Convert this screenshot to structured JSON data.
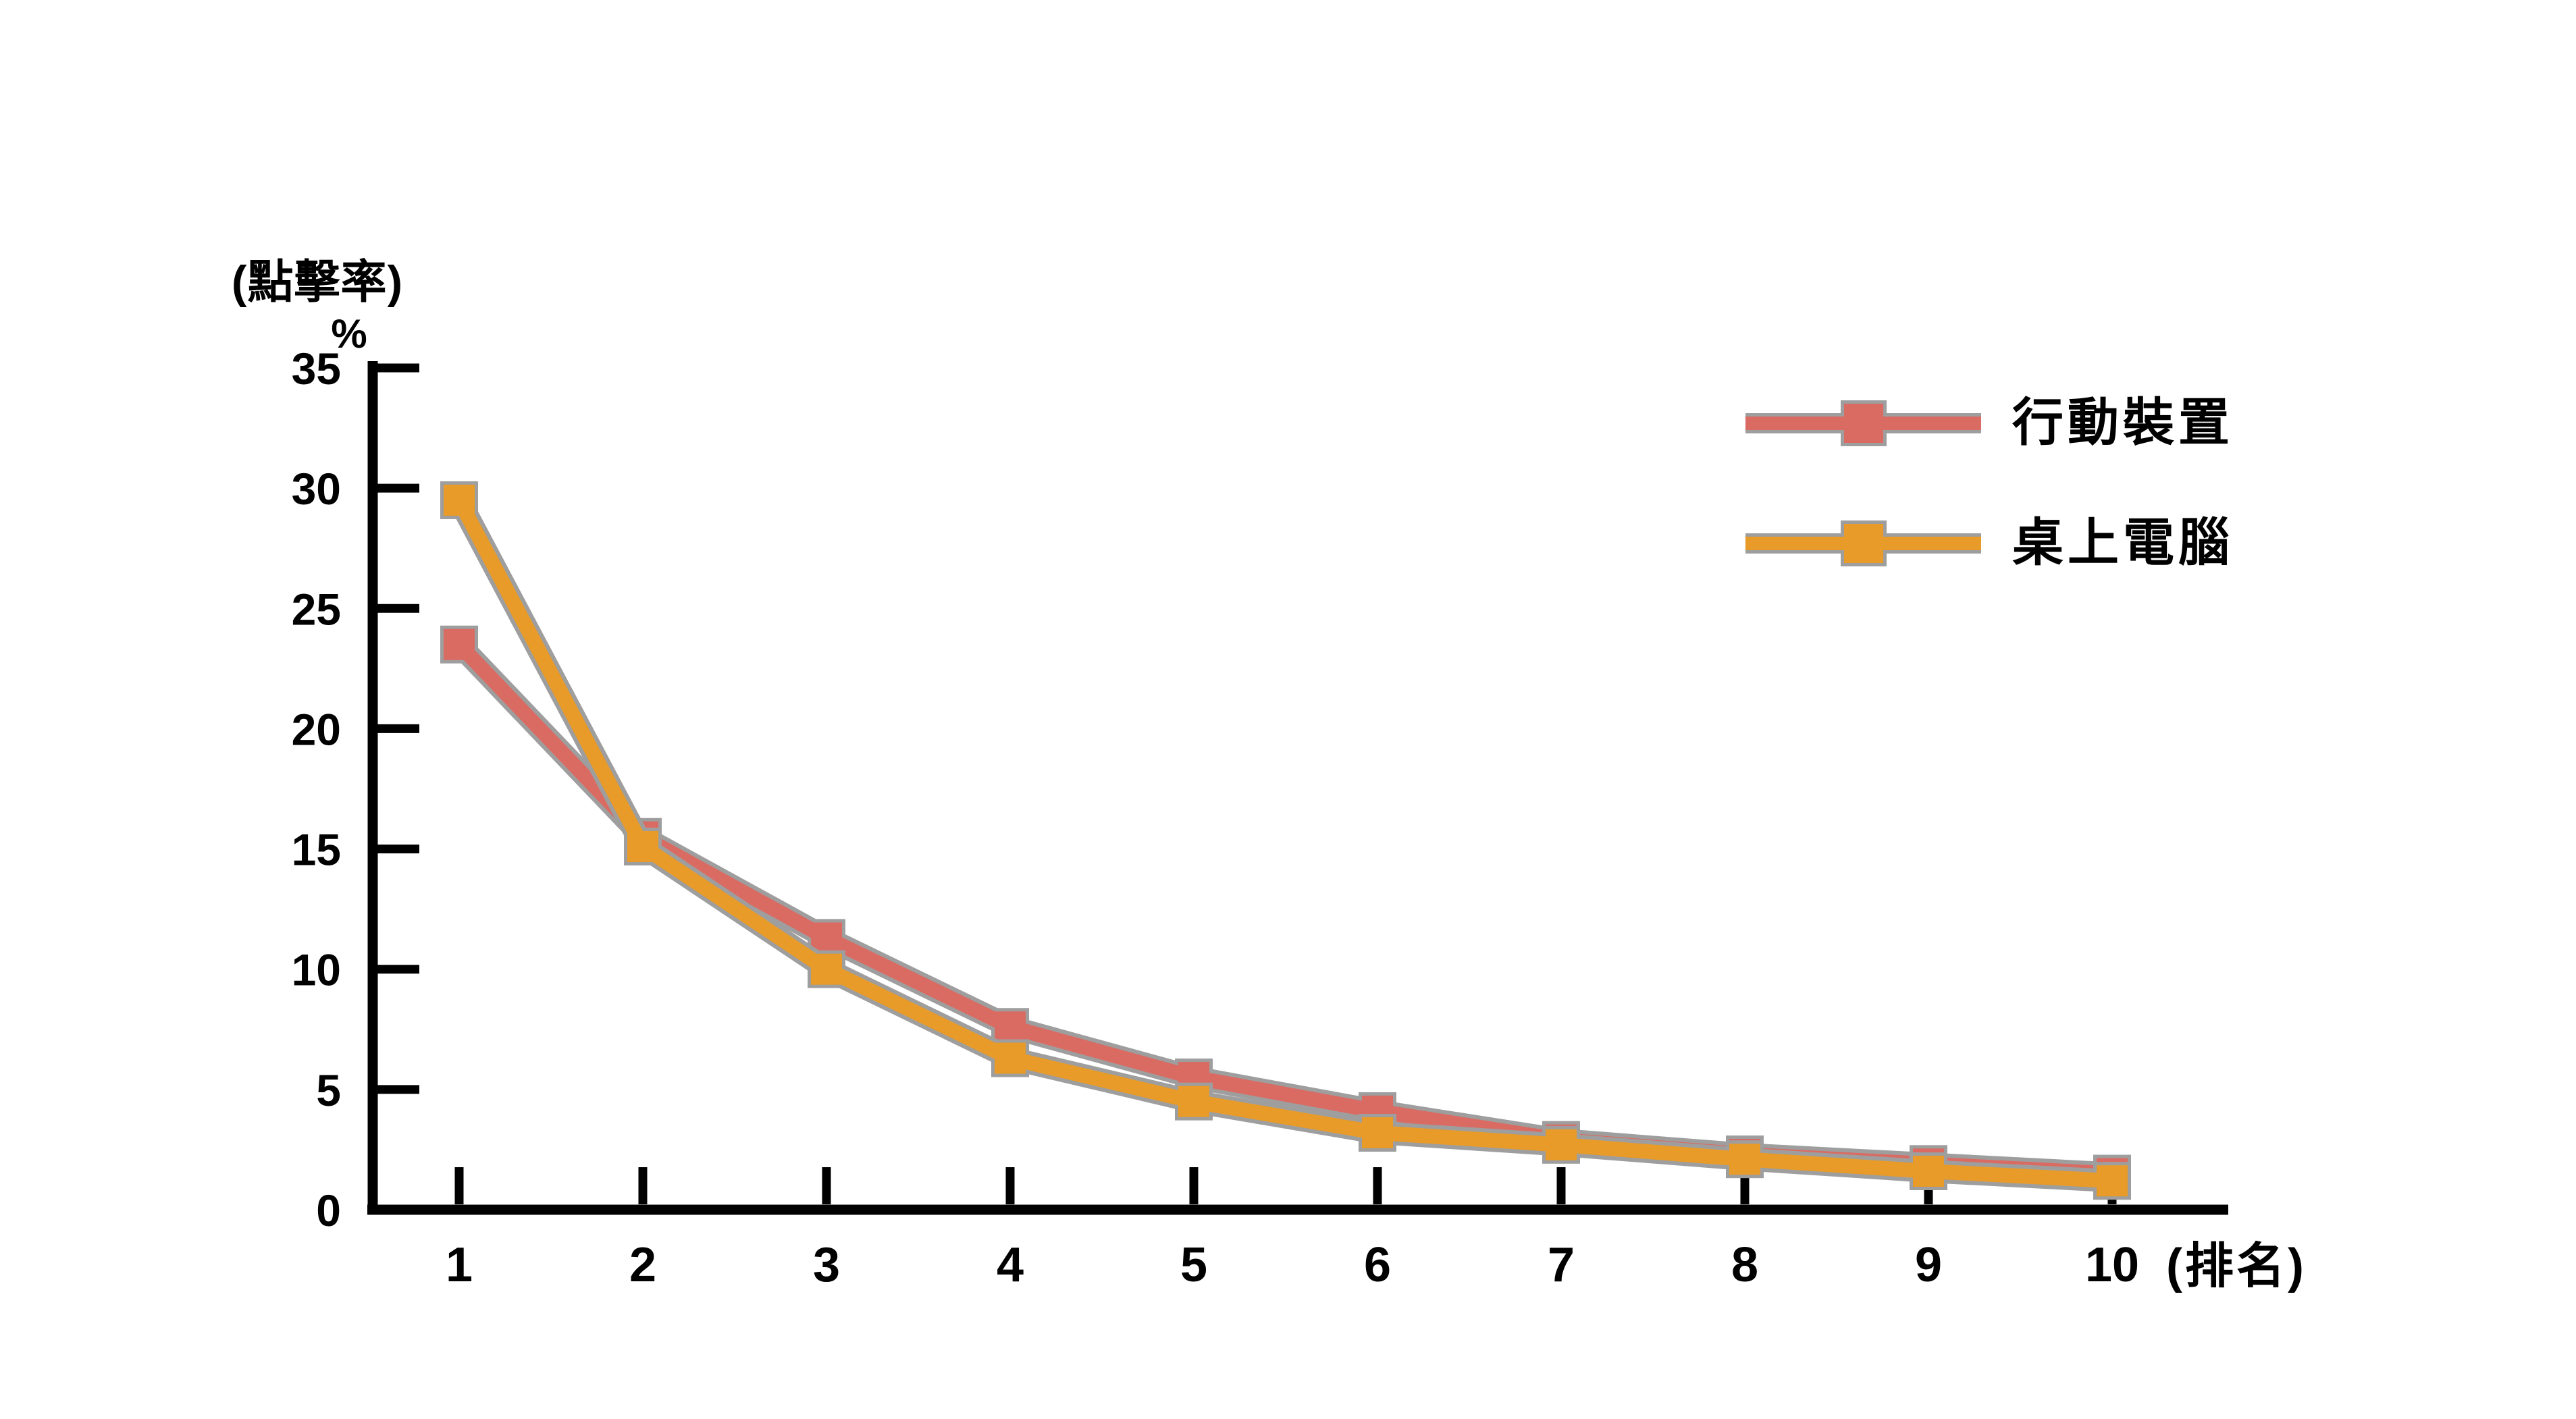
{
  "page": {
    "background_color": "#ffffff",
    "text_color": "#000000"
  },
  "chart_data": {
    "type": "line",
    "title": "(點擊率)",
    "y_unit_label": "%",
    "x_axis_label": "(排名)",
    "x": [
      1,
      2,
      3,
      4,
      5,
      6,
      7,
      8,
      9,
      10
    ],
    "x_tick_labels": [
      "1",
      "2",
      "3",
      "4",
      "5",
      "6",
      "7",
      "8",
      "9",
      "10"
    ],
    "y_ticks": [
      0,
      5,
      10,
      15,
      20,
      25,
      30,
      35
    ],
    "y_tick_labels": [
      "0",
      "5",
      "10",
      "15",
      "20",
      "25",
      "30",
      "35"
    ],
    "ylim": [
      0,
      35
    ],
    "grid": false,
    "legend_position": "top-right",
    "axis_color": "#000000",
    "marker_outline_color": "#9e9e9e",
    "marker_shape": "square",
    "series": [
      {
        "name": "行動裝置",
        "color": "#d96b63",
        "values": [
          23.5,
          15.5,
          11.3,
          7.6,
          5.5,
          4.1,
          2.9,
          2.3,
          1.9,
          1.5
        ]
      },
      {
        "name": "桌上電腦",
        "color": "#e89b28",
        "values": [
          29.5,
          15.1,
          10.0,
          6.3,
          4.5,
          3.2,
          2.7,
          2.1,
          1.6,
          1.2
        ]
      }
    ]
  }
}
